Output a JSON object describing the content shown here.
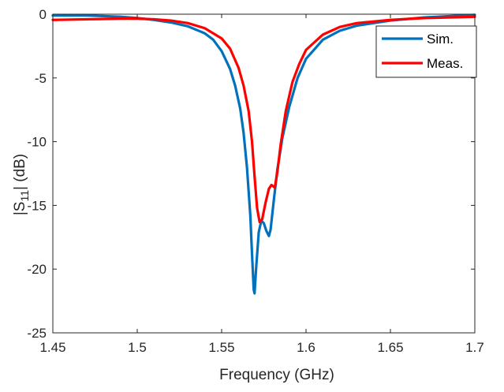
{
  "chart_data": {
    "type": "line",
    "xlabel": "Frequency (GHz)",
    "ylabel_main": "|S",
    "ylabel_sub": "11",
    "ylabel_tail": "| (dB)",
    "xlim": [
      1.45,
      1.7
    ],
    "ylim": [
      -25,
      0
    ],
    "xticks": [
      1.45,
      1.5,
      1.55,
      1.6,
      1.65,
      1.7
    ],
    "xtick_labels": [
      "1.45",
      "1.5",
      "1.55",
      "1.6",
      "1.65",
      "1.7"
    ],
    "yticks": [
      0,
      -5,
      -10,
      -15,
      -20,
      -25
    ],
    "ytick_labels": [
      "0",
      "-5",
      "-10",
      "-15",
      "-20",
      "-25"
    ],
    "grid": false,
    "legend_position": "top-right",
    "series": [
      {
        "name": "Sim.",
        "color": "#0072BD",
        "x": [
          1.45,
          1.47,
          1.49,
          1.5,
          1.51,
          1.52,
          1.53,
          1.54,
          1.545,
          1.55,
          1.555,
          1.558,
          1.561,
          1.563,
          1.565,
          1.567,
          1.568,
          1.569,
          1.5695,
          1.5705,
          1.572,
          1.5735,
          1.575,
          1.5765,
          1.578,
          1.579,
          1.581,
          1.583,
          1.586,
          1.59,
          1.595,
          1.6,
          1.61,
          1.62,
          1.63,
          1.65,
          1.67,
          1.7
        ],
        "y": [
          -0.1,
          -0.1,
          -0.2,
          -0.3,
          -0.45,
          -0.65,
          -0.95,
          -1.5,
          -2.0,
          -2.9,
          -4.3,
          -5.6,
          -7.4,
          -9.3,
          -12.0,
          -15.8,
          -18.8,
          -21.6,
          -21.9,
          -19.8,
          -17.1,
          -16.2,
          -16.4,
          -17.0,
          -17.4,
          -16.9,
          -14.5,
          -12.2,
          -9.7,
          -7.3,
          -5.0,
          -3.5,
          -2.0,
          -1.3,
          -0.9,
          -0.5,
          -0.25,
          -0.05
        ]
      },
      {
        "name": "Meas.",
        "color": "#FF0000",
        "x": [
          1.45,
          1.47,
          1.49,
          1.5,
          1.51,
          1.52,
          1.53,
          1.54,
          1.55,
          1.555,
          1.56,
          1.563,
          1.566,
          1.568,
          1.5695,
          1.571,
          1.5725,
          1.574,
          1.576,
          1.578,
          1.5795,
          1.5815,
          1.583,
          1.585,
          1.588,
          1.592,
          1.596,
          1.6,
          1.61,
          1.62,
          1.63,
          1.65,
          1.67,
          1.7
        ],
        "y": [
          -0.45,
          -0.4,
          -0.35,
          -0.35,
          -0.4,
          -0.5,
          -0.7,
          -1.1,
          -1.9,
          -2.7,
          -4.2,
          -5.6,
          -7.6,
          -10.0,
          -12.7,
          -15.2,
          -16.3,
          -16.1,
          -14.8,
          -13.7,
          -13.4,
          -13.6,
          -12.4,
          -10.2,
          -7.6,
          -5.3,
          -3.9,
          -2.8,
          -1.6,
          -1.0,
          -0.7,
          -0.45,
          -0.3,
          -0.2
        ]
      }
    ]
  }
}
